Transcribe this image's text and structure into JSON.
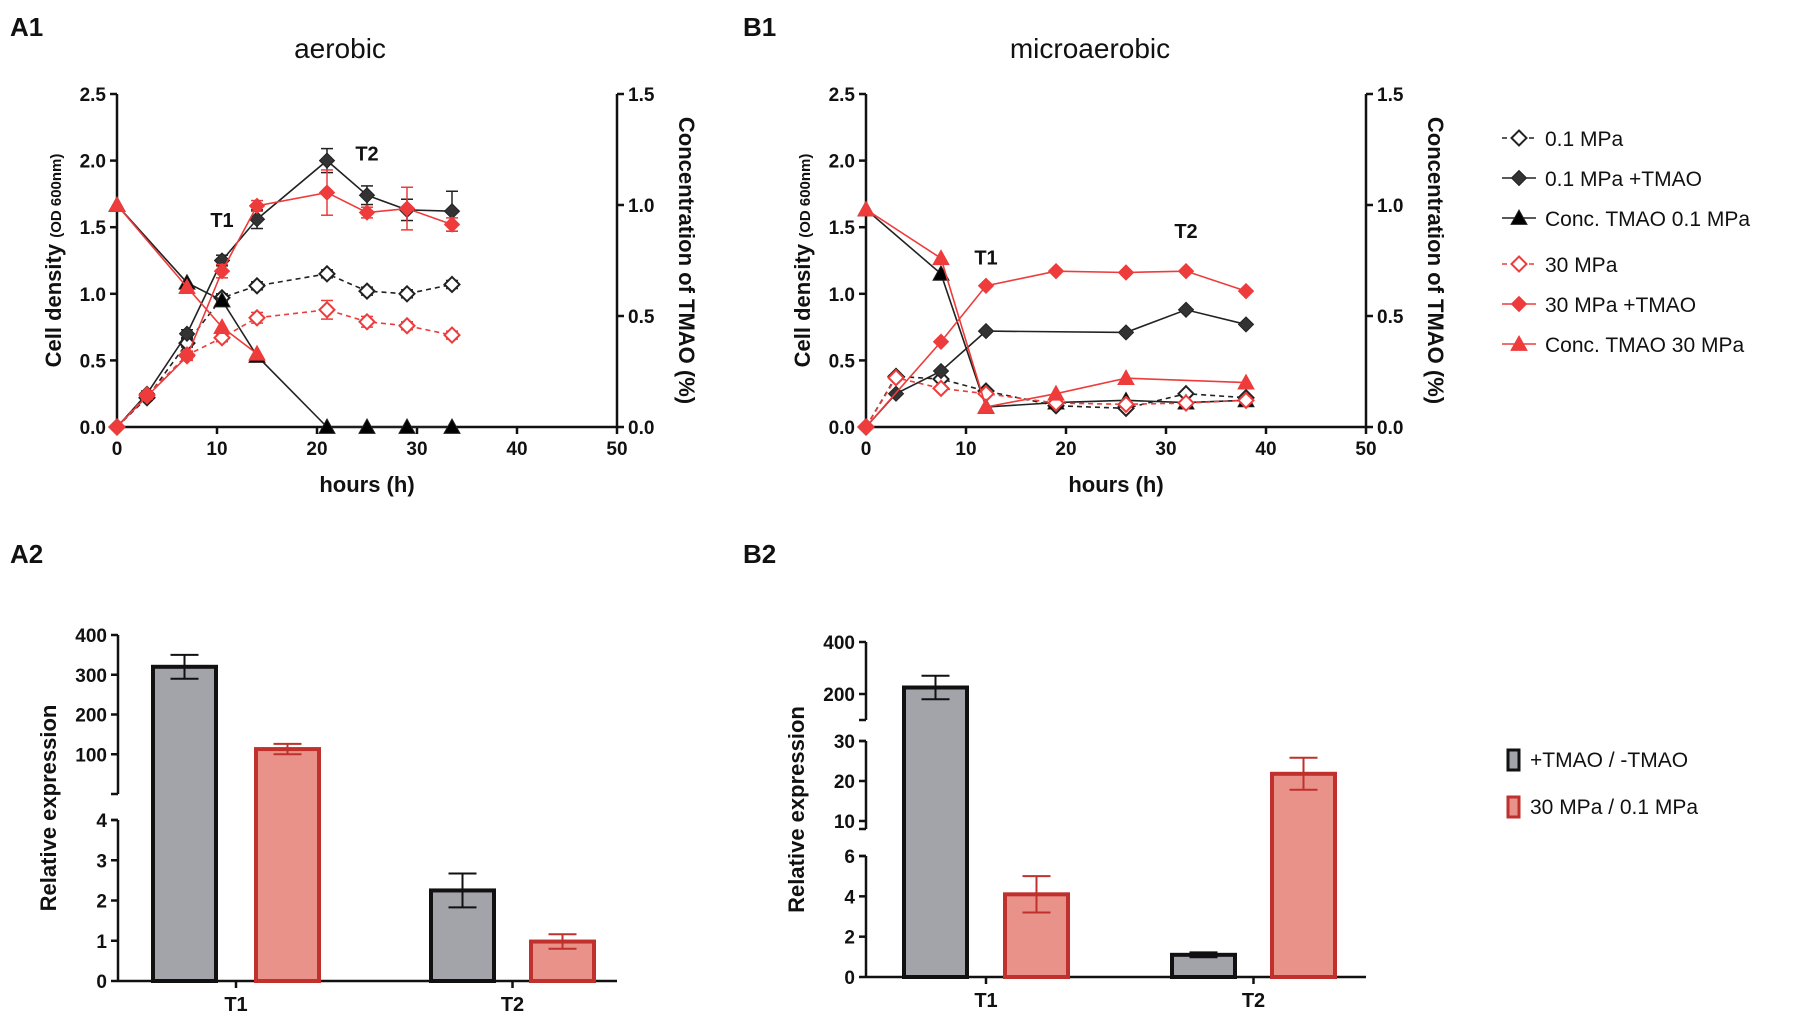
{
  "colors": {
    "black": "#222222",
    "dark_marker": "#333333",
    "red": "#ee3b3b",
    "gray_bar": "#a3a3aa",
    "pink_bar": "#e8928a",
    "red_bar_edge": "#c0302c"
  },
  "panels": {
    "A1": {
      "letter": "A1",
      "title": "aerobic"
    },
    "B1": {
      "letter": "B1",
      "title": "microaerobic"
    },
    "A2": {
      "letter": "A2"
    },
    "B2": {
      "letter": "B2"
    }
  },
  "line_legend": [
    {
      "label": "0.1 MPa",
      "series": "a"
    },
    {
      "label": "0.1 MPa +TMAO",
      "series": "b"
    },
    {
      "label": "Conc. TMAO 0.1 MPa",
      "series": "c"
    },
    {
      "label": "30 MPa",
      "series": "d"
    },
    {
      "label": "30 MPa +TMAO",
      "series": "e"
    },
    {
      "label": "Conc. TMAO 30 MPa",
      "series": "f"
    }
  ],
  "bar_legend": [
    {
      "label": "+TMAO / -TMAO",
      "series": "ratio_tmao"
    },
    {
      "label": "30 MPa / 0.1 MPa",
      "series": "ratio_pressure"
    }
  ],
  "chart_data": [
    {
      "id": "A1",
      "type": "line",
      "title": "aerobic",
      "xlabel": "hours (h)",
      "ylabel": "Cell density",
      "ylabel_sub": "(OD 600nm)",
      "ylabel_right": "Concentration of TMAO (%)",
      "xlim": [
        0,
        50
      ],
      "ylim": [
        0,
        2.5
      ],
      "ylim_right": [
        0,
        1.5
      ],
      "x_ticks": [
        "0",
        "10",
        "20",
        "30",
        "40",
        "50"
      ],
      "y_ticks": [
        "0.0",
        "0.5",
        "1.0",
        "1.5",
        "2.0",
        "2.5"
      ],
      "y_right_ticks": [
        "0.0",
        "0.5",
        "1.0",
        "1.5"
      ],
      "annotations": [
        {
          "text": "T1",
          "x": 10.5,
          "y": 1.5
        },
        {
          "text": "T2",
          "x": 25,
          "y": 2.0
        }
      ],
      "series": [
        {
          "key": "a",
          "name": "0.1 MPa",
          "axis": "left",
          "x": [
            0,
            3,
            7,
            10.5,
            14,
            21,
            25,
            29,
            33.5
          ],
          "y": [
            0,
            0.22,
            0.63,
            0.97,
            1.06,
            1.15,
            1.02,
            1.0,
            1.07
          ],
          "err": [
            0,
            0.02,
            0.03,
            0.03,
            0.03,
            0.03,
            0.03,
            0.03,
            0.03
          ]
        },
        {
          "key": "b",
          "name": "0.1 MPa +TMAO",
          "axis": "left",
          "x": [
            0,
            3,
            7,
            10.5,
            14,
            21,
            25,
            29,
            33.5
          ],
          "y": [
            0,
            0.25,
            0.7,
            1.25,
            1.56,
            2.0,
            1.74,
            1.63,
            1.62
          ],
          "err": [
            0,
            0.02,
            0.03,
            0.04,
            0.07,
            0.09,
            0.07,
            0.08,
            0.15
          ]
        },
        {
          "key": "c",
          "name": "Conc. TMAO 0.1 MPa",
          "axis": "right",
          "x": [
            0,
            7,
            10.5,
            14,
            21,
            25,
            29,
            33.5
          ],
          "y": [
            1.0,
            0.65,
            0.57,
            0.32,
            0.0,
            0.0,
            0.0,
            0.0
          ],
          "err": []
        },
        {
          "key": "d",
          "name": "30 MPa",
          "axis": "left",
          "x": [
            0,
            3,
            7,
            10.5,
            14,
            21,
            25,
            29,
            33.5
          ],
          "y": [
            0,
            0.24,
            0.54,
            0.67,
            0.82,
            0.88,
            0.79,
            0.76,
            0.69
          ],
          "err": [
            0,
            0.02,
            0.03,
            0.03,
            0.04,
            0.07,
            0.04,
            0.03,
            0.03
          ]
        },
        {
          "key": "e",
          "name": "30 MPa +TMAO",
          "axis": "left",
          "x": [
            0,
            3,
            7,
            10.5,
            14,
            21,
            25,
            29,
            33.5
          ],
          "y": [
            0,
            0.23,
            0.53,
            1.17,
            1.66,
            1.76,
            1.61,
            1.64,
            1.52
          ],
          "err": [
            0,
            0.02,
            0.03,
            0.05,
            0.04,
            0.17,
            0.04,
            0.16,
            0.05
          ]
        },
        {
          "key": "f",
          "name": "Conc. TMAO 30 MPa",
          "axis": "right",
          "x": [
            0,
            7,
            10.5,
            14
          ],
          "y": [
            1.0,
            0.63,
            0.45,
            0.33
          ],
          "err": []
        }
      ]
    },
    {
      "id": "B1",
      "type": "line",
      "title": "microaerobic",
      "xlabel": "hours (h)",
      "ylabel": "Cell density",
      "ylabel_sub": "(OD 600nm)",
      "ylabel_right": "Concentration of TMAO (%)",
      "xlim": [
        0,
        50
      ],
      "ylim": [
        0,
        2.5
      ],
      "ylim_right": [
        0,
        1.5
      ],
      "x_ticks": [
        "0",
        "10",
        "20",
        "30",
        "40",
        "50"
      ],
      "y_ticks": [
        "0.0",
        "0.5",
        "1.0",
        "1.5",
        "2.0",
        "2.5"
      ],
      "y_right_ticks": [
        "0.0",
        "0.5",
        "1.0",
        "1.5"
      ],
      "annotations": [
        {
          "text": "T1",
          "x": 12,
          "y": 1.22
        },
        {
          "text": "T2",
          "x": 32,
          "y": 1.42
        }
      ],
      "series": [
        {
          "key": "a",
          "name": "0.1 MPa",
          "axis": "left",
          "x": [
            0,
            3,
            7.5,
            12,
            19,
            26,
            32,
            38
          ],
          "y": [
            0,
            0.38,
            0.36,
            0.27,
            0.16,
            0.14,
            0.25,
            0.22
          ],
          "err": []
        },
        {
          "key": "b",
          "name": "0.1 MPa +TMAO",
          "axis": "left",
          "x": [
            0,
            3,
            7.5,
            12,
            26,
            32,
            38
          ],
          "y": [
            0,
            0.25,
            0.42,
            0.72,
            0.71,
            0.88,
            0.77
          ],
          "err": []
        },
        {
          "key": "c",
          "name": "Conc. TMAO 0.1 MPa",
          "axis": "right",
          "x": [
            0,
            7.5,
            12,
            19,
            26,
            32,
            38
          ],
          "y": [
            0.98,
            0.69,
            0.09,
            0.11,
            0.12,
            0.11,
            0.12
          ],
          "err": []
        },
        {
          "key": "d",
          "name": "30 MPa",
          "axis": "left",
          "x": [
            0,
            3,
            7.5,
            12,
            19,
            26,
            32,
            38
          ],
          "y": [
            0,
            0.37,
            0.29,
            0.25,
            0.18,
            0.17,
            0.18,
            0.2
          ],
          "err": []
        },
        {
          "key": "e",
          "name": "30 MPa +TMAO",
          "axis": "left",
          "x": [
            0,
            7.5,
            12,
            19,
            26,
            32,
            38
          ],
          "y": [
            0,
            0.64,
            1.06,
            1.17,
            1.16,
            1.17,
            1.02
          ],
          "err": []
        },
        {
          "key": "f",
          "name": "Conc. TMAO 30 MPa",
          "axis": "right",
          "x": [
            0,
            7.5,
            12,
            19,
            26,
            38
          ],
          "y": [
            0.98,
            0.76,
            0.09,
            0.15,
            0.22,
            0.2
          ],
          "err": []
        }
      ]
    },
    {
      "id": "A2",
      "type": "bar",
      "ylabel": "Relative expression",
      "broken_axis": true,
      "segments": [
        {
          "ylim": [
            0,
            4
          ],
          "ticks": [
            "0",
            "1",
            "2",
            "3",
            "4"
          ]
        },
        {
          "ylim": [
            0,
            400
          ],
          "ticks": [
            "100",
            "200",
            "300",
            "400"
          ]
        }
      ],
      "categories": [
        "T1",
        "T2"
      ],
      "series": [
        {
          "key": "ratio_tmao",
          "name": "+TMAO / -TMAO",
          "values": [
            320,
            2.25
          ],
          "err": [
            30,
            0.42
          ]
        },
        {
          "key": "ratio_pressure",
          "name": "30 MPa / 0.1 MPa",
          "values": [
            113,
            0.98
          ],
          "err": [
            13,
            0.18
          ]
        }
      ]
    },
    {
      "id": "B2",
      "type": "bar",
      "ylabel": "Relative expression",
      "broken_axis": true,
      "segments": [
        {
          "ylim": [
            0,
            6
          ],
          "ticks": [
            "0",
            "2",
            "4",
            "6"
          ]
        },
        {
          "ylim": [
            8,
            30
          ],
          "ticks": [
            "10",
            "20",
            "30"
          ]
        },
        {
          "ylim": [
            100,
            400
          ],
          "ticks": [
            "200",
            "400"
          ]
        }
      ],
      "categories": [
        "T1",
        "T2"
      ],
      "series": [
        {
          "key": "ratio_tmao",
          "name": "+TMAO / -TMAO",
          "values": [
            225,
            1.1
          ],
          "err": [
            45,
            0.12
          ]
        },
        {
          "key": "ratio_pressure",
          "name": "30 MPa / 0.1 MPa",
          "values": [
            4.1,
            21.8
          ],
          "err": [
            0.9,
            4.0
          ]
        }
      ]
    }
  ]
}
